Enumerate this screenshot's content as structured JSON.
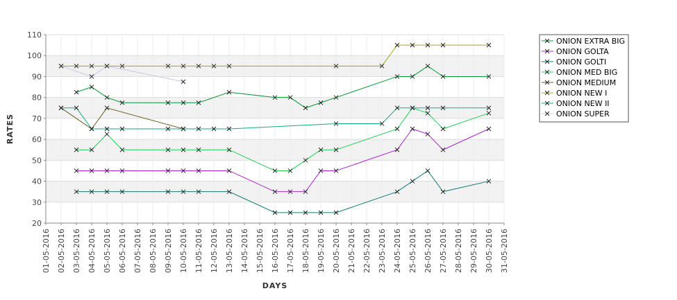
{
  "chart_data": {
    "type": "line",
    "title": "",
    "xlabel": "DAYS",
    "ylabel": "RATES",
    "ylim": [
      20,
      110
    ],
    "yticks": [
      20,
      30,
      40,
      50,
      60,
      70,
      80,
      90,
      100,
      110
    ],
    "xlim": [
      "01-05-2016",
      "31-05-2016"
    ],
    "x_ticks": [
      "01-05-2016",
      "02-05-2016",
      "03-05-2016",
      "04-05-2016",
      "05-05-2016",
      "06-05-2016",
      "07-05-2016",
      "08-05-2016",
      "09-05-2016",
      "10-05-2016",
      "11-05-2016",
      "12-05-2016",
      "13-05-2016",
      "14-05-2016",
      "15-05-2016",
      "16-05-2016",
      "17-05-2016",
      "18-05-2016",
      "19-05-2016",
      "20-05-2016",
      "21-05-2016",
      "22-05-2016",
      "23-05-2016",
      "24-05-2016",
      "25-05-2016",
      "26-05-2016",
      "27-05-2016",
      "28-05-2016",
      "29-05-2016",
      "30-05-2016",
      "31-05-2016"
    ],
    "grid": true,
    "legend_position": "top-right",
    "series": [
      {
        "name": "ONION EXTRA BIG",
        "color": "#009933",
        "points": [
          [
            "03-05-2016",
            82.5
          ],
          [
            "04-05-2016",
            85
          ],
          [
            "05-05-2016",
            80
          ],
          [
            "06-05-2016",
            77.5
          ],
          [
            "09-05-2016",
            77.5
          ],
          [
            "10-05-2016",
            77.5
          ],
          [
            "11-05-2016",
            77.5
          ],
          [
            "13-05-2016",
            82.5
          ],
          [
            "16-05-2016",
            80
          ],
          [
            "17-05-2016",
            80
          ],
          [
            "18-05-2016",
            75
          ],
          [
            "19-05-2016",
            77.5
          ],
          [
            "20-05-2016",
            80
          ],
          [
            "24-05-2016",
            90
          ],
          [
            "25-05-2016",
            90
          ],
          [
            "26-05-2016",
            95
          ],
          [
            "27-05-2016",
            90
          ],
          [
            "30-05-2016",
            90
          ]
        ]
      },
      {
        "name": "ONION GOLTA",
        "color": "#aa22cc",
        "points": [
          [
            "03-05-2016",
            45
          ],
          [
            "04-05-2016",
            45
          ],
          [
            "05-05-2016",
            45
          ],
          [
            "06-05-2016",
            45
          ],
          [
            "09-05-2016",
            45
          ],
          [
            "10-05-2016",
            45
          ],
          [
            "11-05-2016",
            45
          ],
          [
            "13-05-2016",
            45
          ],
          [
            "16-05-2016",
            35
          ],
          [
            "17-05-2016",
            35
          ],
          [
            "18-05-2016",
            35
          ],
          [
            "19-05-2016",
            45
          ],
          [
            "20-05-2016",
            45
          ],
          [
            "24-05-2016",
            55
          ],
          [
            "25-05-2016",
            65
          ],
          [
            "26-05-2016",
            62.5
          ],
          [
            "27-05-2016",
            55
          ],
          [
            "30-05-2016",
            65
          ]
        ]
      },
      {
        "name": "ONION GOLTI",
        "color": "#117777",
        "points": [
          [
            "03-05-2016",
            35
          ],
          [
            "04-05-2016",
            35
          ],
          [
            "05-05-2016",
            35
          ],
          [
            "06-05-2016",
            35
          ],
          [
            "09-05-2016",
            35
          ],
          [
            "10-05-2016",
            35
          ],
          [
            "11-05-2016",
            35
          ],
          [
            "13-05-2016",
            35
          ],
          [
            "16-05-2016",
            25
          ],
          [
            "17-05-2016",
            25
          ],
          [
            "18-05-2016",
            25
          ],
          [
            "19-05-2016",
            25
          ],
          [
            "20-05-2016",
            25
          ],
          [
            "24-05-2016",
            35
          ],
          [
            "25-05-2016",
            40
          ],
          [
            "26-05-2016",
            45
          ],
          [
            "27-05-2016",
            35
          ],
          [
            "30-05-2016",
            40
          ]
        ]
      },
      {
        "name": "ONION MED BIG",
        "color": "#22cc55",
        "points": [
          [
            "03-05-2016",
            55
          ],
          [
            "04-05-2016",
            55
          ],
          [
            "05-05-2016",
            62.5
          ],
          [
            "06-05-2016",
            55
          ],
          [
            "09-05-2016",
            55
          ],
          [
            "10-05-2016",
            55
          ],
          [
            "11-05-2016",
            55
          ],
          [
            "13-05-2016",
            55
          ],
          [
            "16-05-2016",
            45
          ],
          [
            "17-05-2016",
            45
          ],
          [
            "18-05-2016",
            50
          ],
          [
            "19-05-2016",
            55
          ],
          [
            "20-05-2016",
            55
          ],
          [
            "24-05-2016",
            65
          ],
          [
            "25-05-2016",
            75
          ],
          [
            "26-05-2016",
            72.5
          ],
          [
            "27-05-2016",
            65
          ],
          [
            "30-05-2016",
            72.5
          ]
        ]
      },
      {
        "name": "ONION MEDIUM",
        "color": "#6b5a1e",
        "points": [
          [
            "02-05-2016",
            75
          ],
          [
            "04-05-2016",
            65
          ],
          [
            "05-05-2016",
            75
          ],
          [
            "10-05-2016",
            65
          ]
        ]
      },
      {
        "name": "ONION NEW I",
        "color": "#a3a322",
        "points": [
          [
            "02-05-2016",
            95
          ],
          [
            "03-05-2016",
            95
          ],
          [
            "04-05-2016",
            95
          ],
          [
            "05-05-2016",
            95
          ],
          [
            "06-05-2016",
            95
          ],
          [
            "09-05-2016",
            95
          ],
          [
            "10-05-2016",
            95
          ],
          [
            "11-05-2016",
            95
          ],
          [
            "12-05-2016",
            95
          ],
          [
            "13-05-2016",
            95
          ],
          [
            "20-05-2016",
            95
          ],
          [
            "23-05-2016",
            95
          ],
          [
            "24-05-2016",
            105
          ],
          [
            "25-05-2016",
            105
          ],
          [
            "26-05-2016",
            105
          ],
          [
            "27-05-2016",
            105
          ],
          [
            "30-05-2016",
            105
          ]
        ]
      },
      {
        "name": "ONION NEW II",
        "color": "#11aa88",
        "points": [
          [
            "02-05-2016",
            75
          ],
          [
            "03-05-2016",
            75
          ],
          [
            "04-05-2016",
            65
          ],
          [
            "05-05-2016",
            65
          ],
          [
            "06-05-2016",
            65
          ],
          [
            "09-05-2016",
            65
          ],
          [
            "10-05-2016",
            65
          ],
          [
            "11-05-2016",
            65
          ],
          [
            "12-05-2016",
            65
          ],
          [
            "13-05-2016",
            65
          ],
          [
            "20-05-2016",
            67.5
          ],
          [
            "23-05-2016",
            67.5
          ],
          [
            "24-05-2016",
            75
          ],
          [
            "25-05-2016",
            75
          ],
          [
            "26-05-2016",
            75
          ],
          [
            "27-05-2016",
            75
          ],
          [
            "30-05-2016",
            75
          ]
        ]
      },
      {
        "name": "ONION SUPER",
        "color": "#c8c8e8",
        "points": [
          [
            "02-05-2016",
            95
          ],
          [
            "04-05-2016",
            90
          ],
          [
            "05-05-2016",
            95
          ],
          [
            "10-05-2016",
            87.5
          ]
        ]
      }
    ]
  }
}
